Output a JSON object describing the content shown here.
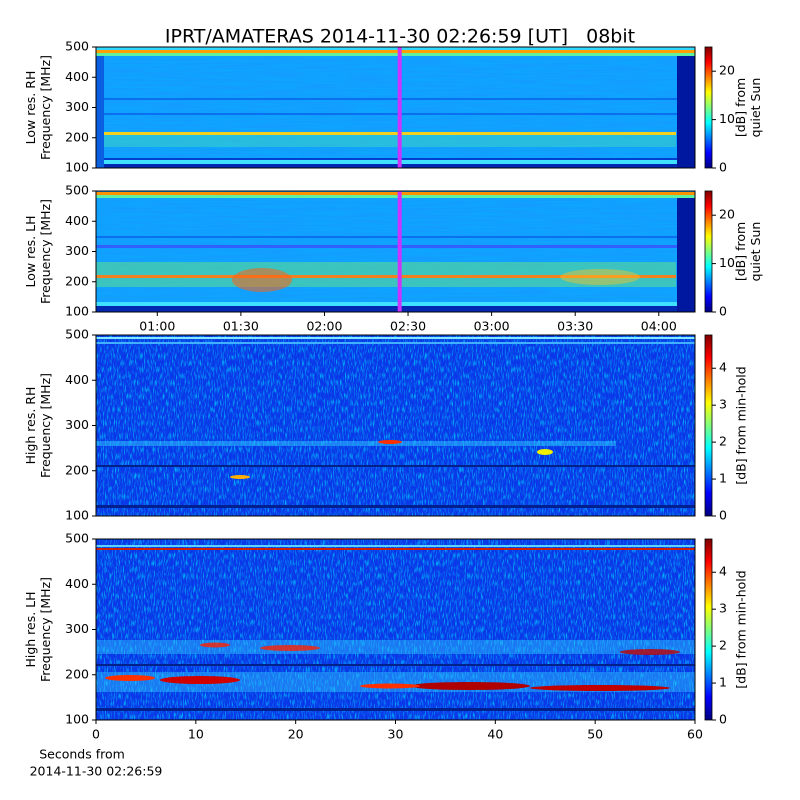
{
  "title": "IPRT/AMATERAS 2014-11-30 02:26:59 [UT]   08bit",
  "chart_data": [
    {
      "type": "heatmap",
      "ylabel": [
        "Low res. RH",
        "Frequency [MHz]"
      ],
      "ylim": [
        100,
        500
      ],
      "yticks": [
        100,
        200,
        300,
        400,
        500
      ],
      "xlim": [
        38,
        253
      ],
      "cursor": 147,
      "cursor_color": "#cc33ff",
      "colormap": "jet",
      "clim": [
        0,
        25
      ],
      "cticks": [
        0,
        10,
        20
      ],
      "colorbar_label": [
        "[dB] from",
        "quiet Sun"
      ]
    },
    {
      "type": "heatmap",
      "ylabel": [
        "Low res. LH",
        "Frequency [MHz]"
      ],
      "ylim": [
        100,
        500
      ],
      "yticks": [
        100,
        200,
        300,
        400,
        500
      ],
      "xlim": [
        38,
        253
      ],
      "xticks": [
        {
          "value": 60,
          "label": "01:00"
        },
        {
          "value": 90,
          "label": "01:30"
        },
        {
          "value": 120,
          "label": "02:00"
        },
        {
          "value": 150,
          "label": "02:30"
        },
        {
          "value": 180,
          "label": "03:00"
        },
        {
          "value": 210,
          "label": "03:30"
        },
        {
          "value": 240,
          "label": "04:00"
        }
      ],
      "cursor": 147,
      "cursor_color": "#cc33ff",
      "colormap": "jet",
      "clim": [
        0,
        25
      ],
      "cticks": [
        0,
        10,
        20
      ],
      "colorbar_label": [
        "[dB] from",
        "quiet Sun"
      ]
    },
    {
      "type": "heatmap",
      "ylabel": [
        "High res. RH",
        "Frequency [MHz]"
      ],
      "ylim": [
        100,
        500
      ],
      "yticks": [
        100,
        200,
        300,
        400,
        500
      ],
      "xlim": [
        0,
        60
      ],
      "colormap": "jet",
      "clim": [
        0,
        4.9
      ],
      "cticks": [
        0,
        1,
        2,
        3,
        4
      ],
      "colorbar_label": [
        "[dB] from min-hold"
      ]
    },
    {
      "type": "heatmap",
      "ylabel": [
        "High res. LH",
        "Frequency [MHz]"
      ],
      "ylim": [
        100,
        500
      ],
      "yticks": [
        100,
        200,
        300,
        400,
        500
      ],
      "xlim": [
        0,
        60
      ],
      "xticks": [
        0,
        10,
        20,
        30,
        40,
        50,
        60
      ],
      "xlabel": [
        "Seconds from",
        "2014-11-30 02:26:59"
      ],
      "colormap": "jet",
      "clim": [
        0,
        4.9
      ],
      "cticks": [
        0,
        1,
        2,
        3,
        4
      ],
      "colorbar_label": [
        "[dB] from min-hold"
      ]
    }
  ]
}
